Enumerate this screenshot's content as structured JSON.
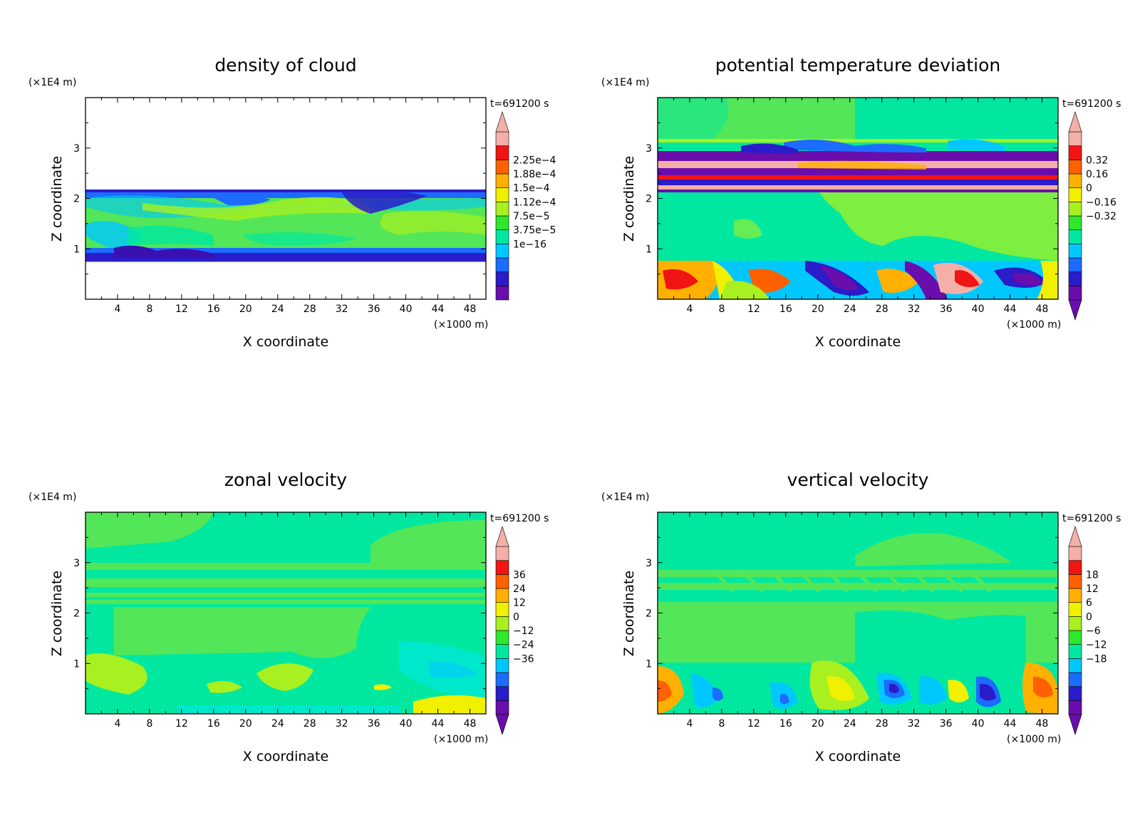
{
  "figure": {
    "panels": [
      {
        "title": "density of cloud",
        "xlabel": "X coordinate",
        "ylabel": "Z coordinate",
        "x_unit": "(×1000 m)",
        "y_unit": "(×1E4 m)",
        "time_label": "t=691200 s",
        "colorbar_labels": [
          "2.25e−4",
          "1.88e−4",
          "1.5e−4",
          "1.12e−4",
          "7.5e−5",
          "3.75e−5",
          "1e−16"
        ],
        "colorbar_has_bottom_arrow": false
      },
      {
        "title": "potential temperature deviation",
        "xlabel": "X coordinate",
        "ylabel": "Z coordinate",
        "x_unit": "(×1000 m)",
        "y_unit": "(×1E4 m)",
        "time_label": "t=691200 s",
        "colorbar_labels": [
          "0.32",
          "0.16",
          "0",
          "−0.16",
          "−0.32"
        ],
        "colorbar_has_bottom_arrow": true
      },
      {
        "title": "zonal velocity",
        "xlabel": "X coordinate",
        "ylabel": "Z coordinate",
        "x_unit": "(×1000 m)",
        "y_unit": "(×1E4 m)",
        "time_label": "t=691200 s",
        "colorbar_labels": [
          "36",
          "24",
          "12",
          "0",
          "−12",
          "−24",
          "−36"
        ],
        "colorbar_has_bottom_arrow": true
      },
      {
        "title": "vertical velocity",
        "xlabel": "X coordinate",
        "ylabel": "Z coordinate",
        "x_unit": "(×1000 m)",
        "y_unit": "(×1E4 m)",
        "time_label": "t=691200 s",
        "colorbar_labels": [
          "18",
          "12",
          "6",
          "0",
          "−6",
          "−12",
          "−18"
        ],
        "colorbar_has_bottom_arrow": true
      }
    ]
  },
  "chart_data": [
    {
      "type": "heatmap",
      "title": "density of cloud",
      "xlabel": "X coordinate",
      "ylabel": "Z coordinate",
      "x_ticks": [
        "4",
        "8",
        "12",
        "16",
        "20",
        "24",
        "28",
        "32",
        "36",
        "40",
        "44",
        "48"
      ],
      "y_ticks": [
        "1",
        "2",
        "3"
      ],
      "xlim": [
        0,
        50
      ],
      "ylim": [
        0,
        4
      ],
      "colorbar_levels": [
        "1e−16",
        "3.75e−5",
        "7.5e−5",
        "1.12e−4",
        "1.5e−4",
        "1.88e−4",
        "2.25e−4"
      ],
      "note": "cloud layer between z≈0.75 and z≈2.15 (×1E4 m)"
    },
    {
      "type": "heatmap",
      "title": "potential temperature deviation",
      "xlabel": "X coordinate",
      "ylabel": "Z coordinate",
      "x_ticks": [
        "4",
        "8",
        "12",
        "16",
        "20",
        "24",
        "28",
        "32",
        "36",
        "40",
        "44",
        "48"
      ],
      "y_ticks": [
        "1",
        "2",
        "3"
      ],
      "xlim": [
        0,
        50
      ],
      "ylim": [
        0,
        4
      ],
      "colorbar_levels": [
        "−0.32",
        "−0.16",
        "0",
        "0.16",
        "0.32"
      ]
    },
    {
      "type": "heatmap",
      "title": "zonal velocity",
      "xlabel": "X coordinate",
      "ylabel": "Z coordinate",
      "x_ticks": [
        "4",
        "8",
        "12",
        "16",
        "20",
        "24",
        "28",
        "32",
        "36",
        "40",
        "44",
        "48"
      ],
      "y_ticks": [
        "1",
        "2",
        "3"
      ],
      "xlim": [
        0,
        50
      ],
      "ylim": [
        0,
        4
      ],
      "colorbar_levels": [
        "−36",
        "−24",
        "−12",
        "0",
        "12",
        "24",
        "36"
      ]
    },
    {
      "type": "heatmap",
      "title": "vertical velocity",
      "xlabel": "X coordinate",
      "ylabel": "Z coordinate",
      "x_ticks": [
        "4",
        "8",
        "12",
        "16",
        "20",
        "24",
        "28",
        "32",
        "36",
        "40",
        "44",
        "48"
      ],
      "y_ticks": [
        "1",
        "2",
        "3"
      ],
      "xlim": [
        0,
        50
      ],
      "ylim": [
        0,
        4
      ],
      "colorbar_levels": [
        "−18",
        "−12",
        "−6",
        "0",
        "6",
        "12",
        "18"
      ]
    }
  ],
  "colors": {
    "colorbar": [
      "#6a0dad",
      "#2a1cc8",
      "#1c6cff",
      "#00c8ff",
      "#00e8a0",
      "#2ee82e",
      "#a8f020",
      "#f0f000",
      "#ffb000",
      "#ff6000",
      "#f01414",
      "#f4b0a8"
    ],
    "background_green": "#52e658",
    "aqua": "#00e8a0",
    "lime": "#8cf000"
  }
}
